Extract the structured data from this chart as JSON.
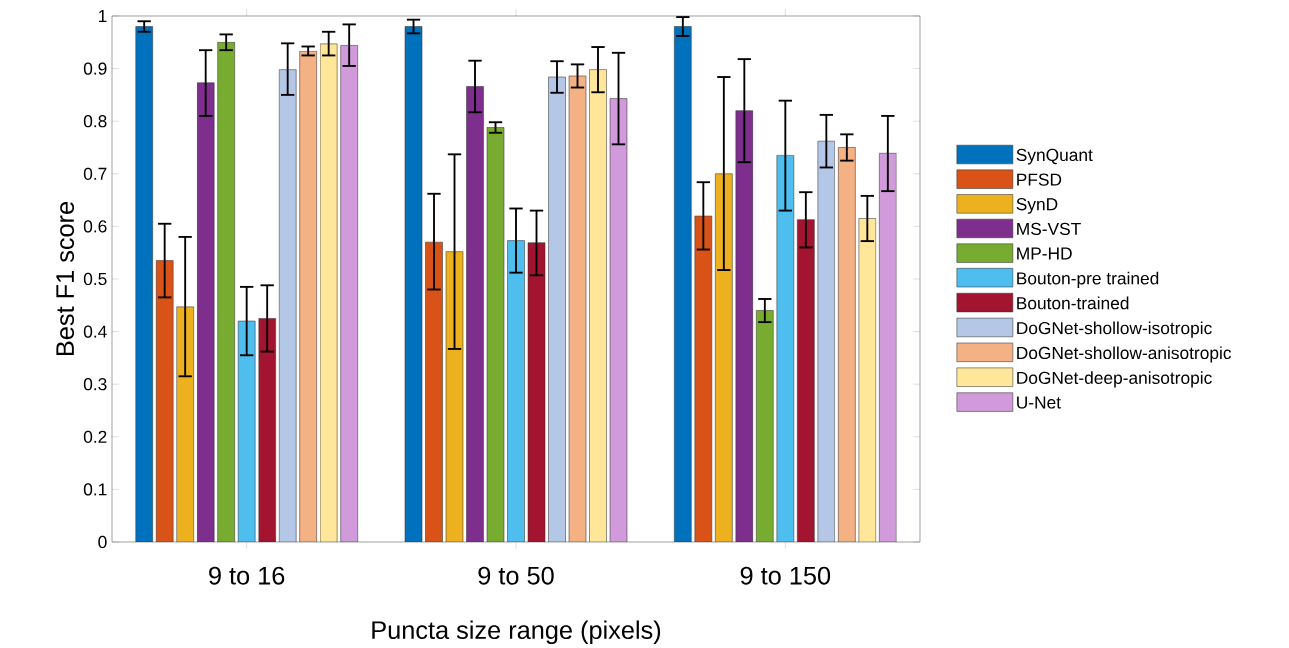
{
  "chart_data": {
    "type": "bar",
    "xlabel": "Puncta size range (pixels)",
    "ylabel": "Best F1 score",
    "categories": [
      "9 to 16",
      "9 to 50",
      "9 to 150"
    ],
    "ylim": [
      0,
      1
    ],
    "yticks": [
      0,
      0.1,
      0.2,
      0.3,
      0.4,
      0.5,
      0.6,
      0.7,
      0.8,
      0.9,
      1
    ],
    "legend": "right",
    "grid": false,
    "series": [
      {
        "name": "SynQuant",
        "color": "#0072bd",
        "values": [
          0.98,
          0.98,
          0.98
        ],
        "errors": [
          [
            0.97,
            0.99
          ],
          [
            0.967,
            0.993
          ],
          [
            0.962,
            0.998
          ]
        ]
      },
      {
        "name": "PFSD",
        "color": "#d95319",
        "values": [
          0.535,
          0.57,
          0.62
        ],
        "errors": [
          [
            0.465,
            0.605
          ],
          [
            0.48,
            0.662
          ],
          [
            0.556,
            0.684
          ]
        ]
      },
      {
        "name": "SynD",
        "color": "#edb120",
        "values": [
          0.447,
          0.552,
          0.7
        ],
        "errors": [
          [
            0.315,
            0.58
          ],
          [
            0.367,
            0.737
          ],
          [
            0.517,
            0.884
          ]
        ]
      },
      {
        "name": "MS-VST",
        "color": "#7e2f8e",
        "values": [
          0.873,
          0.866,
          0.82
        ],
        "errors": [
          [
            0.81,
            0.935
          ],
          [
            0.817,
            0.915
          ],
          [
            0.722,
            0.918
          ]
        ]
      },
      {
        "name": "MP-HD",
        "color": "#77ac30",
        "values": [
          0.95,
          0.788,
          0.44
        ],
        "errors": [
          [
            0.935,
            0.965
          ],
          [
            0.778,
            0.798
          ],
          [
            0.418,
            0.462
          ]
        ]
      },
      {
        "name": "Bouton-pre trained",
        "color": "#4dbeee",
        "values": [
          0.42,
          0.573,
          0.735
        ],
        "errors": [
          [
            0.355,
            0.485
          ],
          [
            0.512,
            0.634
          ],
          [
            0.63,
            0.839
          ]
        ]
      },
      {
        "name": "Bouton-trained",
        "color": "#a2142f",
        "values": [
          0.425,
          0.569,
          0.613
        ],
        "errors": [
          [
            0.362,
            0.488
          ],
          [
            0.507,
            0.63
          ],
          [
            0.56,
            0.665
          ]
        ]
      },
      {
        "name": "DoGNet-shollow-isotropic",
        "color": "#b4c7e7",
        "values": [
          0.898,
          0.884,
          0.762
        ],
        "errors": [
          [
            0.85,
            0.948
          ],
          [
            0.854,
            0.914
          ],
          [
            0.712,
            0.812
          ]
        ]
      },
      {
        "name": "DoGNet-shollow-anisotropic",
        "color": "#f4b183",
        "values": [
          0.933,
          0.886,
          0.75
        ],
        "errors": [
          [
            0.925,
            0.942
          ],
          [
            0.864,
            0.908
          ],
          [
            0.725,
            0.775
          ]
        ]
      },
      {
        "name": "DoGNet-deep-anisotropic",
        "color": "#ffe699",
        "values": [
          0.947,
          0.898,
          0.615
        ],
        "errors": [
          [
            0.925,
            0.97
          ],
          [
            0.855,
            0.941
          ],
          [
            0.572,
            0.658
          ]
        ]
      },
      {
        "name": "U-Net",
        "color": "#d09adb",
        "values": [
          0.944,
          0.843,
          0.739
        ],
        "errors": [
          [
            0.905,
            0.984
          ],
          [
            0.756,
            0.93
          ],
          [
            0.667,
            0.81
          ]
        ]
      }
    ]
  }
}
